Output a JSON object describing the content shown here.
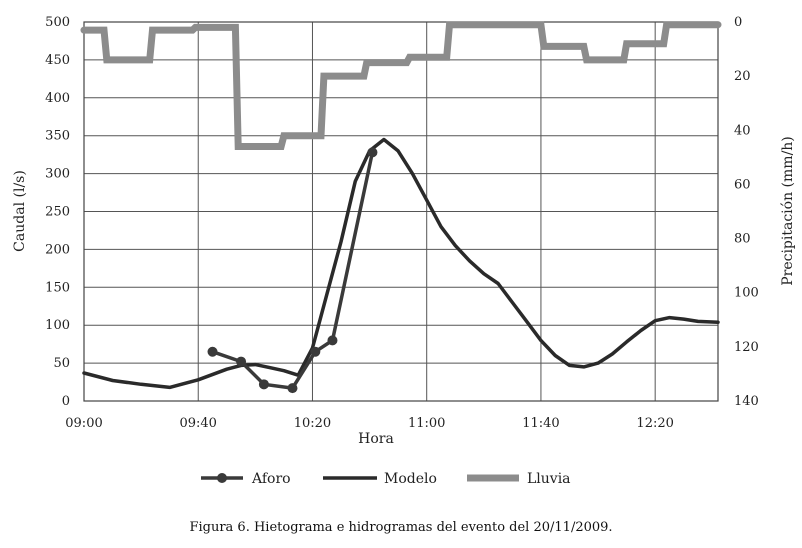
{
  "chart_data": {
    "type": "line",
    "xlabel": "Hora",
    "ylabel_left": "Caudal (l/s)",
    "ylabel_right": "Precipitación (mm/h)",
    "x_ticks": [
      "09:00",
      "09:40",
      "10:20",
      "11:00",
      "11:40",
      "12:20"
    ],
    "x_tick_minutes": [
      0,
      40,
      80,
      120,
      160,
      200
    ],
    "xlim_minutes": [
      0,
      222
    ],
    "ylim_left": [
      0,
      500
    ],
    "ylim_left_ticks": [
      "0",
      "50",
      "100",
      "150",
      "200",
      "250",
      "300",
      "350",
      "400",
      "450",
      "500"
    ],
    "ylim_right": [
      140,
      0
    ],
    "ylim_right_ticks": [
      "0",
      "20",
      "40",
      "60",
      "80",
      "100",
      "120",
      "140"
    ],
    "grid": true,
    "legend_position": "bottom",
    "series": [
      {
        "name": "Aforo",
        "axis": "left",
        "color": "#3a3a3a",
        "markers": true,
        "x_minutes": [
          45,
          55,
          63,
          73,
          81,
          87,
          101
        ],
        "y": [
          65,
          52,
          22,
          17,
          65,
          80,
          328
        ]
      },
      {
        "name": "Modelo",
        "axis": "left",
        "color": "#2a2a2a",
        "markers": false,
        "x_minutes": [
          0,
          10,
          20,
          30,
          40,
          50,
          55,
          60,
          65,
          70,
          75,
          80,
          85,
          90,
          95,
          100,
          105,
          110,
          115,
          120,
          125,
          130,
          135,
          140,
          145,
          150,
          155,
          160,
          165,
          170,
          175,
          180,
          185,
          190,
          195,
          200,
          205,
          210,
          215,
          222
        ],
        "y": [
          37,
          27,
          22,
          18,
          28,
          42,
          47,
          48,
          44,
          40,
          34,
          70,
          140,
          210,
          290,
          330,
          345,
          330,
          300,
          265,
          230,
          205,
          185,
          168,
          155,
          130,
          105,
          80,
          60,
          47,
          45,
          50,
          62,
          78,
          93,
          106,
          110,
          108,
          105,
          104
        ]
      },
      {
        "name": "Lluvia",
        "axis": "right",
        "color": "#8c8c8c",
        "step": true,
        "x_minutes": [
          0,
          7,
          8,
          23,
          24,
          38,
          39,
          53,
          54,
          69,
          70,
          83,
          84,
          98,
          99,
          113,
          114,
          127,
          128,
          160,
          161,
          175,
          176,
          189,
          190,
          203,
          204,
          222
        ],
        "y": [
          3,
          3,
          14,
          14,
          3,
          3,
          2,
          2,
          46,
          46,
          42,
          42,
          20,
          20,
          15,
          15,
          13,
          13,
          1,
          1,
          9,
          9,
          14,
          14,
          8,
          8,
          1,
          1
        ]
      }
    ]
  },
  "legend": {
    "aforo": "Aforo",
    "modelo": "Modelo",
    "lluvia": "Lluvia"
  },
  "caption": "Figura 6. Hietograma e hidrogramas del evento del 20/11/2009."
}
